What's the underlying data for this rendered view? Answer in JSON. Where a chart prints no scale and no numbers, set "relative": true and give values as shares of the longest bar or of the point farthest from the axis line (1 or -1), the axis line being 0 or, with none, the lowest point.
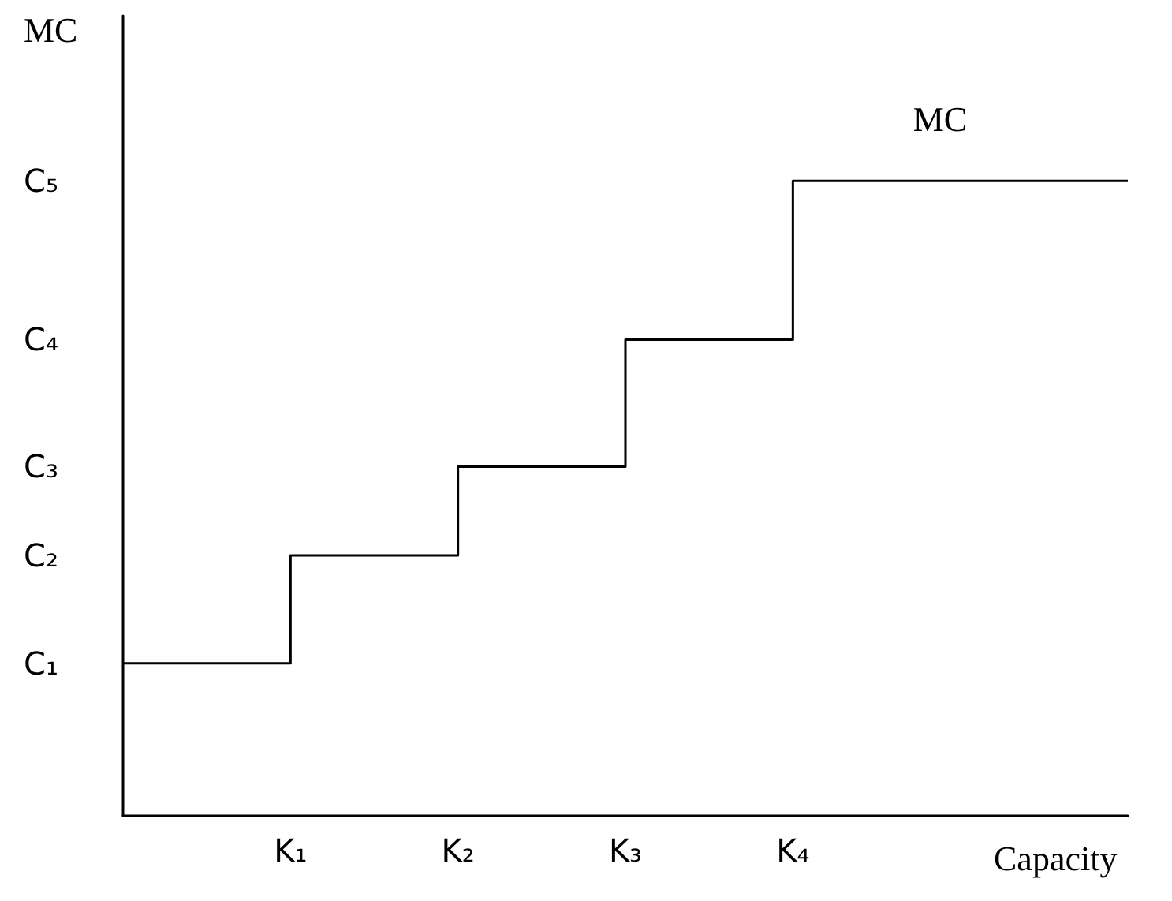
{
  "chart_data": {
    "type": "step",
    "ylabel": "MC",
    "xlabel": "Capacity",
    "relative": true,
    "categories": [
      null,
      "K₁",
      "K₂",
      "K₃",
      "K₄",
      null,
      null
    ],
    "series": [
      {
        "name": "MC",
        "color": "#000000",
        "values": [
          0.24,
          0.41,
          0.55,
          0.75,
          1,
          1,
          1
        ]
      }
    ],
    "annotations": [
      "C₁",
      "C₂",
      "C₃",
      "C₄",
      "C₅"
    ],
    "grid": false,
    "legend": false,
    "marker": "none",
    "line_style": "solid"
  }
}
